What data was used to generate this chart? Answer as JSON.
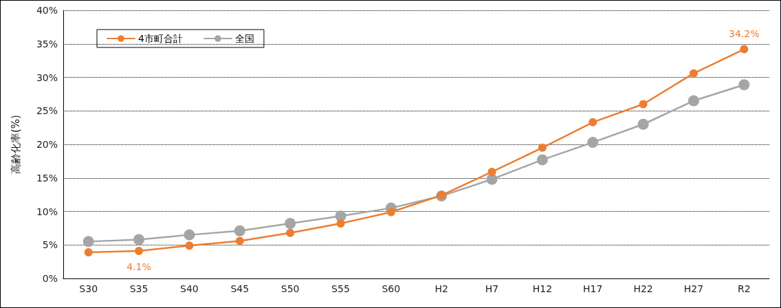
{
  "chart_data": {
    "type": "line",
    "ylabel": "高齢化率(%)",
    "categories": [
      "S30",
      "S35",
      "S40",
      "S45",
      "S50",
      "S55",
      "S60",
      "H2",
      "H7",
      "H12",
      "H17",
      "H22",
      "H27",
      "R2"
    ],
    "series": [
      {
        "name": "4市町合計",
        "color": "#ed7d31",
        "values": [
          3.9,
          4.1,
          4.9,
          5.6,
          6.8,
          8.2,
          9.9,
          12.4,
          15.9,
          19.5,
          23.3,
          26.0,
          30.6,
          34.2
        ],
        "value_labels": [
          null,
          "4.1%",
          null,
          null,
          null,
          null,
          null,
          null,
          null,
          null,
          null,
          null,
          null,
          "34.2%"
        ]
      },
      {
        "name": "全国",
        "color": "#a5a5a5",
        "values": [
          5.5,
          5.8,
          6.5,
          7.1,
          8.2,
          9.3,
          10.5,
          12.3,
          14.8,
          17.7,
          20.3,
          23.0,
          26.5,
          28.9
        ]
      }
    ],
    "ylim": [
      0,
      40
    ],
    "yticks": [
      {
        "value": 0,
        "label": "0%"
      },
      {
        "value": 5,
        "label": "5%"
      },
      {
        "value": 10,
        "label": "10%"
      },
      {
        "value": 15,
        "label": "15%"
      },
      {
        "value": 20,
        "label": "20%"
      },
      {
        "value": 25,
        "label": "25%"
      },
      {
        "value": 30,
        "label": "30%"
      },
      {
        "value": 35,
        "label": "35%"
      },
      {
        "value": 40,
        "label": "40%"
      }
    ],
    "grid": "y",
    "legend": "top left",
    "marker": "circle",
    "line_style": "solid"
  }
}
